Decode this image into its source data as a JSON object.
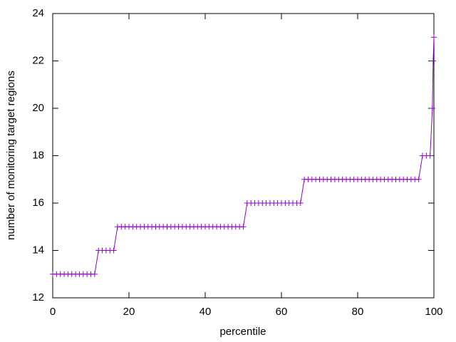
{
  "chart_data": {
    "type": "line",
    "xlabel": "percentile",
    "ylabel": "number of monitoring target regions",
    "color": "#9400d3",
    "marker": "+",
    "x": [
      0,
      1,
      2,
      3,
      4,
      5,
      6,
      7,
      8,
      9,
      10,
      11,
      12,
      13,
      14,
      15,
      16,
      17,
      18,
      19,
      20,
      21,
      22,
      23,
      24,
      25,
      26,
      27,
      28,
      29,
      30,
      31,
      32,
      33,
      34,
      35,
      36,
      37,
      38,
      39,
      40,
      41,
      42,
      43,
      44,
      45,
      46,
      47,
      48,
      49,
      50,
      51,
      52,
      53,
      54,
      55,
      56,
      57,
      58,
      59,
      60,
      61,
      62,
      63,
      64,
      65,
      66,
      67,
      68,
      69,
      70,
      71,
      72,
      73,
      74,
      75,
      76,
      77,
      78,
      79,
      80,
      81,
      82,
      83,
      84,
      85,
      86,
      87,
      88,
      89,
      90,
      91,
      92,
      93,
      94,
      95,
      96,
      97,
      98,
      99,
      99.6,
      99.8,
      100
    ],
    "values": [
      13,
      13,
      13,
      13,
      13,
      13,
      13,
      13,
      13,
      13,
      13,
      13,
      14,
      14,
      14,
      14,
      14,
      15,
      15,
      15,
      15,
      15,
      15,
      15,
      15,
      15,
      15,
      15,
      15,
      15,
      15,
      15,
      15,
      15,
      15,
      15,
      15,
      15,
      15,
      15,
      15,
      15,
      15,
      15,
      15,
      15,
      15,
      15,
      15,
      15,
      15,
      16,
      16,
      16,
      16,
      16,
      16,
      16,
      16,
      16,
      16,
      16,
      16,
      16,
      16,
      16,
      17,
      17,
      17,
      17,
      17,
      17,
      17,
      17,
      17,
      17,
      17,
      17,
      17,
      17,
      17,
      17,
      17,
      17,
      17,
      17,
      17,
      17,
      17,
      17,
      17,
      17,
      17,
      17,
      17,
      17,
      17,
      18,
      18,
      18,
      20,
      22,
      23
    ],
    "xlim": [
      0,
      100
    ],
    "xticks": [
      0,
      20,
      40,
      60,
      80,
      100
    ],
    "ylim": [
      12,
      24
    ],
    "yticks": [
      12,
      14,
      16,
      18,
      20,
      22,
      24
    ]
  }
}
